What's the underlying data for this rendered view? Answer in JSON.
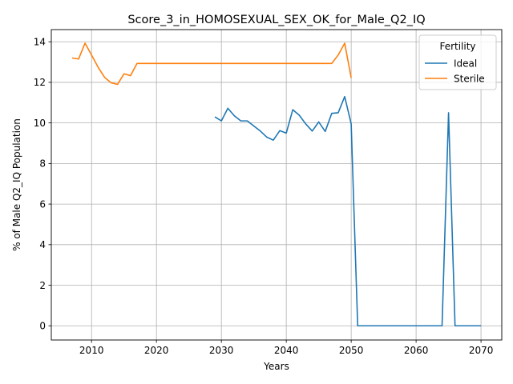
{
  "chart_data": {
    "type": "line",
    "title": "Score_3_in_HOMOSEXUAL_SEX_OK_for_Male_Q2_IQ",
    "xlabel": "Years",
    "ylabel": "% of Male Q2_IQ Population",
    "xlim": [
      2003.8,
      2073.2
    ],
    "ylim": [
      -0.7,
      14.6
    ],
    "xticks": [
      2010,
      2020,
      2030,
      2040,
      2050,
      2060,
      2070
    ],
    "yticks": [
      0,
      2,
      4,
      6,
      8,
      10,
      12,
      14
    ],
    "grid": true,
    "legend": {
      "title": "Fertility",
      "placement": "top-right"
    },
    "colors": {
      "Ideal": "#1f77b4",
      "Sterile": "#ff7f0e"
    },
    "series": [
      {
        "name": "Ideal",
        "x": [
          2029,
          2030,
          2031,
          2032,
          2033,
          2034,
          2035,
          2036,
          2037,
          2038,
          2039,
          2040,
          2041,
          2042,
          2043,
          2044,
          2045,
          2046,
          2047,
          2048,
          2049,
          2050,
          2051,
          2052,
          2053,
          2054,
          2055,
          2056,
          2057,
          2058,
          2059,
          2060,
          2061,
          2062,
          2063,
          2064,
          2065,
          2066,
          2067,
          2068,
          2069,
          2070
        ],
        "y": [
          10.3,
          10.1,
          10.72,
          10.35,
          10.1,
          10.1,
          9.85,
          9.6,
          9.3,
          9.15,
          9.62,
          9.5,
          10.65,
          10.38,
          9.95,
          9.6,
          10.05,
          9.58,
          10.47,
          10.5,
          11.3,
          9.95,
          0,
          0,
          0,
          0,
          0,
          0,
          0,
          0,
          0,
          0,
          0,
          0,
          0,
          0,
          10.5,
          0,
          0,
          0,
          0,
          0
        ]
      },
      {
        "name": "Sterile",
        "x": [
          2007,
          2008,
          2009,
          2010,
          2011,
          2012,
          2013,
          2014,
          2015,
          2016,
          2017,
          2018,
          2019,
          2020,
          2025,
          2030,
          2035,
          2040,
          2045,
          2046,
          2047,
          2048,
          2049,
          2050
        ],
        "y": [
          13.2,
          13.15,
          13.93,
          13.35,
          12.75,
          12.25,
          11.98,
          11.9,
          12.42,
          12.33,
          12.93,
          12.93,
          12.93,
          12.93,
          12.93,
          12.93,
          12.93,
          12.93,
          12.93,
          12.93,
          12.93,
          13.35,
          13.93,
          12.22
        ]
      }
    ]
  }
}
